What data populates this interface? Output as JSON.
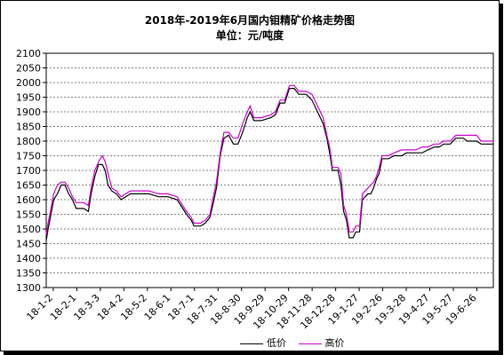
{
  "chart_data": {
    "type": "line",
    "title": "2018年-2019年6月国内钼精矿价格走势图",
    "subtitle": "单位：元/吨度",
    "ylim": [
      1300,
      2100
    ],
    "y_ticks": [
      1300,
      1350,
      1400,
      1450,
      1500,
      1550,
      1600,
      1650,
      1700,
      1750,
      1800,
      1850,
      1900,
      1950,
      2000,
      2050,
      2100
    ],
    "x_tick_labels": [
      "18-1-2",
      "18-2-1",
      "18-3-3",
      "18-4-2",
      "18-5-2",
      "18-6-1",
      "18-7-1",
      "18-7-31",
      "18-8-30",
      "18-9-29",
      "18-10-29",
      "18-11-28",
      "18-12-28",
      "19-1-27",
      "19-2-26",
      "19-3-28",
      "19-4-27",
      "19-5-27",
      "19-6-26"
    ],
    "grid": "horizontal dashed",
    "legend": "bottom",
    "series": [
      {
        "name": "低价",
        "color": "#000000",
        "points": [
          [
            0,
            1460
          ],
          [
            2,
            1500
          ],
          [
            5,
            1550
          ],
          [
            8,
            1600
          ],
          [
            12,
            1620
          ],
          [
            16,
            1650
          ],
          [
            20,
            1650
          ],
          [
            24,
            1620
          ],
          [
            28,
            1600
          ],
          [
            32,
            1570
          ],
          [
            40,
            1570
          ],
          [
            45,
            1560
          ],
          [
            48,
            1620
          ],
          [
            52,
            1680
          ],
          [
            56,
            1720
          ],
          [
            60,
            1720
          ],
          [
            63,
            1700
          ],
          [
            66,
            1650
          ],
          [
            70,
            1630
          ],
          [
            75,
            1620
          ],
          [
            80,
            1600
          ],
          [
            85,
            1610
          ],
          [
            90,
            1620
          ],
          [
            110,
            1620
          ],
          [
            120,
            1610
          ],
          [
            130,
            1610
          ],
          [
            140,
            1600
          ],
          [
            150,
            1550
          ],
          [
            155,
            1530
          ],
          [
            158,
            1510
          ],
          [
            165,
            1510
          ],
          [
            170,
            1520
          ],
          [
            175,
            1540
          ],
          [
            178,
            1580
          ],
          [
            182,
            1640
          ],
          [
            186,
            1750
          ],
          [
            190,
            1810
          ],
          [
            195,
            1820
          ],
          [
            200,
            1790
          ],
          [
            205,
            1790
          ],
          [
            210,
            1830
          ],
          [
            215,
            1880
          ],
          [
            218,
            1900
          ],
          [
            222,
            1870
          ],
          [
            230,
            1870
          ],
          [
            240,
            1880
          ],
          [
            245,
            1890
          ],
          [
            250,
            1930
          ],
          [
            255,
            1930
          ],
          [
            260,
            1980
          ],
          [
            265,
            1980
          ],
          [
            270,
            1960
          ],
          [
            278,
            1960
          ],
          [
            284,
            1940
          ],
          [
            290,
            1900
          ],
          [
            296,
            1860
          ],
          [
            300,
            1810
          ],
          [
            303,
            1760
          ],
          [
            306,
            1700
          ],
          [
            312,
            1700
          ],
          [
            315,
            1650
          ],
          [
            318,
            1560
          ],
          [
            321,
            1530
          ],
          [
            324,
            1470
          ],
          [
            328,
            1470
          ],
          [
            331,
            1490
          ],
          [
            335,
            1490
          ],
          [
            338,
            1600
          ],
          [
            344,
            1620
          ],
          [
            347,
            1620
          ],
          [
            350,
            1640
          ],
          [
            353,
            1670
          ],
          [
            356,
            1690
          ],
          [
            359,
            1740
          ],
          [
            366,
            1740
          ],
          [
            372,
            1750
          ],
          [
            380,
            1750
          ],
          [
            385,
            1760
          ],
          [
            395,
            1760
          ],
          [
            402,
            1760
          ],
          [
            408,
            1770
          ],
          [
            415,
            1780
          ],
          [
            420,
            1780
          ],
          [
            425,
            1790
          ],
          [
            432,
            1790
          ],
          [
            438,
            1810
          ],
          [
            446,
            1810
          ],
          [
            450,
            1800
          ],
          [
            460,
            1800
          ],
          [
            465,
            1790
          ],
          [
            478,
            1790
          ]
        ]
      },
      {
        "name": "高价",
        "color": "#cc00cc",
        "points": [
          [
            0,
            1480
          ],
          [
            2,
            1520
          ],
          [
            5,
            1570
          ],
          [
            8,
            1620
          ],
          [
            12,
            1650
          ],
          [
            16,
            1660
          ],
          [
            20,
            1660
          ],
          [
            24,
            1640
          ],
          [
            28,
            1610
          ],
          [
            32,
            1590
          ],
          [
            40,
            1590
          ],
          [
            45,
            1580
          ],
          [
            48,
            1640
          ],
          [
            52,
            1700
          ],
          [
            56,
            1730
          ],
          [
            60,
            1750
          ],
          [
            63,
            1730
          ],
          [
            66,
            1690
          ],
          [
            70,
            1640
          ],
          [
            75,
            1630
          ],
          [
            80,
            1610
          ],
          [
            85,
            1620
          ],
          [
            90,
            1630
          ],
          [
            110,
            1630
          ],
          [
            120,
            1620
          ],
          [
            130,
            1620
          ],
          [
            140,
            1610
          ],
          [
            150,
            1560
          ],
          [
            155,
            1540
          ],
          [
            158,
            1520
          ],
          [
            165,
            1520
          ],
          [
            170,
            1530
          ],
          [
            175,
            1550
          ],
          [
            178,
            1600
          ],
          [
            182,
            1660
          ],
          [
            186,
            1760
          ],
          [
            190,
            1830
          ],
          [
            195,
            1830
          ],
          [
            200,
            1810
          ],
          [
            205,
            1810
          ],
          [
            210,
            1860
          ],
          [
            215,
            1900
          ],
          [
            218,
            1920
          ],
          [
            222,
            1880
          ],
          [
            230,
            1880
          ],
          [
            240,
            1890
          ],
          [
            245,
            1900
          ],
          [
            250,
            1940
          ],
          [
            255,
            1940
          ],
          [
            260,
            1990
          ],
          [
            265,
            1990
          ],
          [
            270,
            1970
          ],
          [
            278,
            1970
          ],
          [
            284,
            1960
          ],
          [
            290,
            1920
          ],
          [
            296,
            1880
          ],
          [
            300,
            1820
          ],
          [
            303,
            1780
          ],
          [
            306,
            1710
          ],
          [
            312,
            1710
          ],
          [
            315,
            1690
          ],
          [
            318,
            1580
          ],
          [
            321,
            1550
          ],
          [
            324,
            1490
          ],
          [
            328,
            1490
          ],
          [
            331,
            1510
          ],
          [
            335,
            1510
          ],
          [
            338,
            1620
          ],
          [
            344,
            1640
          ],
          [
            347,
            1650
          ],
          [
            350,
            1660
          ],
          [
            353,
            1680
          ],
          [
            356,
            1710
          ],
          [
            359,
            1750
          ],
          [
            366,
            1750
          ],
          [
            372,
            1760
          ],
          [
            380,
            1770
          ],
          [
            385,
            1770
          ],
          [
            395,
            1770
          ],
          [
            402,
            1780
          ],
          [
            408,
            1780
          ],
          [
            415,
            1790
          ],
          [
            420,
            1790
          ],
          [
            425,
            1800
          ],
          [
            432,
            1800
          ],
          [
            438,
            1820
          ],
          [
            446,
            1820
          ],
          [
            450,
            1820
          ],
          [
            460,
            1820
          ],
          [
            465,
            1800
          ],
          [
            478,
            1800
          ]
        ]
      }
    ]
  }
}
